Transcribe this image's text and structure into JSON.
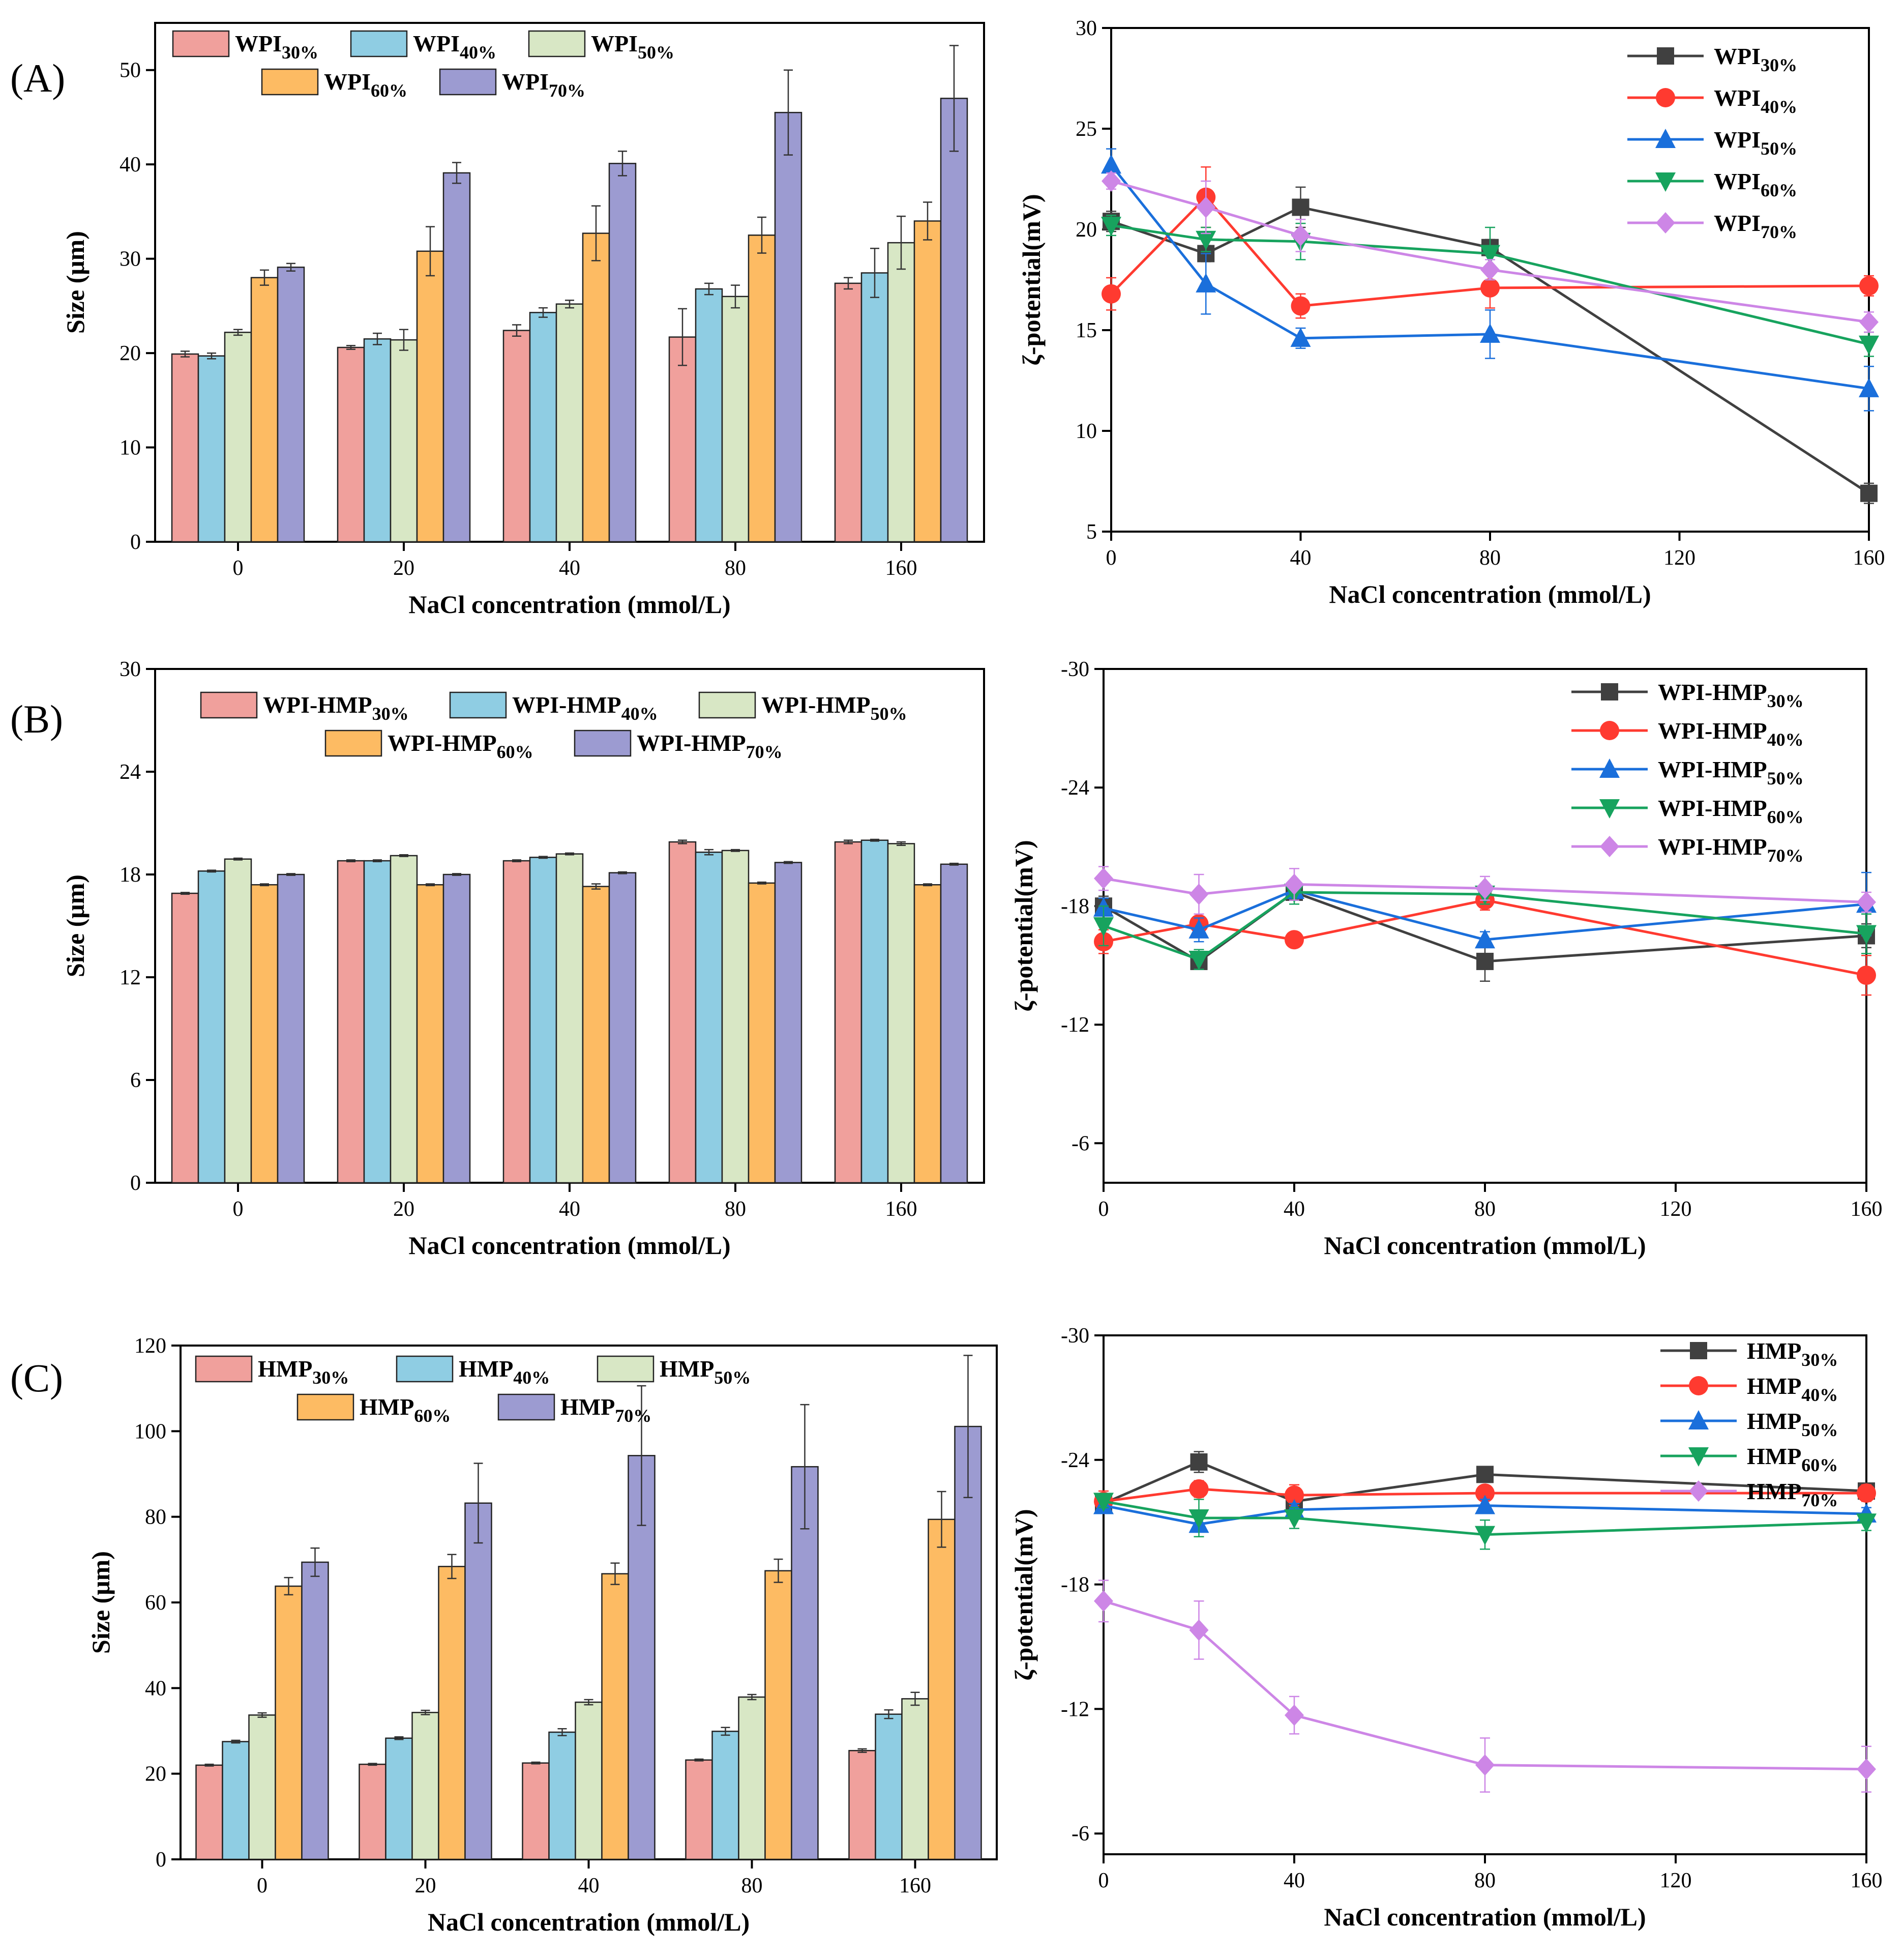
{
  "panel_labels": [
    "(A)",
    "(B)",
    "(C)"
  ],
  "chart_data": [
    {
      "id": "A-size",
      "panel": "(A)",
      "type": "bar",
      "title": "",
      "xlabel": "NaCl concentration (mmol/L)",
      "ylabel": "Size (μm)",
      "categories": [
        "0",
        "20",
        "40",
        "80",
        "160"
      ],
      "ylim": [
        0,
        55
      ],
      "yticks": [
        0,
        10,
        20,
        30,
        40,
        50
      ],
      "legend_rows": [
        [
          0,
          1,
          2
        ],
        [
          3,
          4
        ]
      ],
      "legend_position": "top-left",
      "series": [
        {
          "name": "WPI",
          "sub": "30%",
          "color": "#f0a09c",
          "values": [
            19.9,
            20.6,
            22.4,
            21.7,
            27.4
          ],
          "errors": [
            0.3,
            0.2,
            0.6,
            3.0,
            0.6
          ]
        },
        {
          "name": "WPI",
          "sub": "40%",
          "color": "#8fcde3",
          "values": [
            19.7,
            21.5,
            24.3,
            26.8,
            28.5
          ],
          "errors": [
            0.3,
            0.6,
            0.5,
            0.6,
            2.6
          ]
        },
        {
          "name": "WPI",
          "sub": "50%",
          "color": "#d8e7c5",
          "values": [
            22.2,
            21.4,
            25.2,
            26.0,
            31.7
          ],
          "errors": [
            0.3,
            1.1,
            0.4,
            1.2,
            2.8
          ]
        },
        {
          "name": "WPI",
          "sub": "60%",
          "color": "#fdbb63",
          "values": [
            28.0,
            30.8,
            32.7,
            32.5,
            34.0
          ],
          "errors": [
            0.8,
            2.6,
            2.9,
            1.9,
            2.0
          ]
        },
        {
          "name": "WPI",
          "sub": "70%",
          "color": "#9c9bd1",
          "values": [
            29.1,
            39.1,
            40.1,
            45.5,
            47.0
          ],
          "errors": [
            0.4,
            1.1,
            1.3,
            4.5,
            5.6
          ]
        }
      ]
    },
    {
      "id": "A-zeta",
      "panel": "(A)",
      "type": "line",
      "title": "",
      "xlabel": "NaCl concentration (mmol/L)",
      "ylabel": "ζ-potential(mV)",
      "x": [
        0,
        20,
        40,
        80,
        160
      ],
      "xlim": [
        0,
        160
      ],
      "xticks": [
        0,
        40,
        80,
        120,
        160
      ],
      "ylim": [
        5,
        30
      ],
      "yticks": [
        5,
        10,
        15,
        20,
        25,
        30
      ],
      "y_reversed": false,
      "legend_position": "top-right",
      "series": [
        {
          "name": "WPI",
          "sub": "30%",
          "color": "#404040",
          "marker": "square",
          "values": [
            20.4,
            18.8,
            21.1,
            19.1,
            6.9
          ],
          "errors": [
            0.5,
            0.4,
            1.0,
            0.4,
            0.5
          ]
        },
        {
          "name": "WPI",
          "sub": "40%",
          "color": "#ff3a30",
          "marker": "circle",
          "values": [
            16.8,
            21.6,
            16.2,
            17.1,
            17.2
          ],
          "errors": [
            0.8,
            1.5,
            0.6,
            1.0,
            0.5
          ]
        },
        {
          "name": "WPI",
          "sub": "50%",
          "color": "#1a6fdb",
          "marker": "triangle-up",
          "values": [
            23.2,
            17.3,
            14.6,
            14.8,
            12.1
          ],
          "errors": [
            0.8,
            1.5,
            0.5,
            1.2,
            1.1
          ]
        },
        {
          "name": "WPI",
          "sub": "60%",
          "color": "#17a35e",
          "marker": "triangle-down",
          "values": [
            20.2,
            19.5,
            19.4,
            18.8,
            14.3
          ],
          "errors": [
            0.5,
            0.6,
            0.9,
            1.3,
            0.6
          ]
        },
        {
          "name": "WPI",
          "sub": "70%",
          "color": "#cd86e6",
          "marker": "diamond",
          "values": [
            22.4,
            21.1,
            19.7,
            18.0,
            15.4
          ],
          "errors": [
            0.4,
            1.3,
            0.8,
            0.5,
            0.5
          ]
        }
      ]
    },
    {
      "id": "B-size",
      "panel": "(B)",
      "type": "bar",
      "title": "",
      "xlabel": "NaCl concentration (mmol/L)",
      "ylabel": "Size (μm)",
      "categories": [
        "0",
        "20",
        "40",
        "80",
        "160"
      ],
      "ylim": [
        0,
        30
      ],
      "yticks": [
        0,
        6,
        12,
        18,
        24,
        30
      ],
      "legend_rows": [
        [
          0,
          1,
          2
        ],
        [
          3,
          4
        ]
      ],
      "legend_position": "top-left",
      "series": [
        {
          "name": "WPI-HMP",
          "sub": "30%",
          "color": "#f0a09c",
          "values": [
            16.9,
            18.8,
            18.8,
            19.9,
            19.9
          ],
          "errors": [
            0.05,
            0.05,
            0.05,
            0.1,
            0.1
          ]
        },
        {
          "name": "WPI-HMP",
          "sub": "40%",
          "color": "#8fcde3",
          "values": [
            18.2,
            18.8,
            19.0,
            19.3,
            20.0
          ],
          "errors": [
            0.05,
            0.05,
            0.05,
            0.15,
            0.05
          ]
        },
        {
          "name": "WPI-HMP",
          "sub": "50%",
          "color": "#d8e7c5",
          "values": [
            18.9,
            19.1,
            19.2,
            19.4,
            19.8
          ],
          "errors": [
            0.05,
            0.05,
            0.05,
            0.05,
            0.1
          ]
        },
        {
          "name": "WPI-HMP",
          "sub": "60%",
          "color": "#fdbb63",
          "values": [
            17.4,
            17.4,
            17.3,
            17.5,
            17.4
          ],
          "errors": [
            0.05,
            0.05,
            0.15,
            0.05,
            0.05
          ]
        },
        {
          "name": "WPI-HMP",
          "sub": "70%",
          "color": "#9c9bd1",
          "values": [
            18.0,
            18.0,
            18.1,
            18.7,
            18.6
          ],
          "errors": [
            0.05,
            0.05,
            0.05,
            0.05,
            0.05
          ]
        }
      ]
    },
    {
      "id": "B-zeta",
      "panel": "(B)",
      "type": "line",
      "title": "",
      "xlabel": "NaCl concentration (mmol/L)",
      "ylabel": "ζ-potential(mV)",
      "x": [
        0,
        20,
        40,
        80,
        160
      ],
      "xlim": [
        0,
        160
      ],
      "xticks": [
        0,
        40,
        80,
        120,
        160
      ],
      "ylim": [
        -30,
        -4
      ],
      "yticks": [
        -30,
        -24,
        -18,
        -12,
        -6
      ],
      "y_reversed": true,
      "legend_position": "top-right",
      "series": [
        {
          "name": "WPI-HMP",
          "sub": "30%",
          "color": "#404040",
          "marker": "square",
          "values": [
            -18.0,
            -15.2,
            -18.7,
            -15.2,
            -16.5
          ],
          "errors": [
            0.5,
            0.4,
            0.4,
            1.0,
            0.6
          ]
        },
        {
          "name": "WPI-HMP",
          "sub": "40%",
          "color": "#ff3a30",
          "marker": "circle",
          "values": [
            -16.2,
            -17.1,
            -16.3,
            -18.3,
            -14.5
          ],
          "errors": [
            0.6,
            0.5,
            0.3,
            0.5,
            1.0
          ]
        },
        {
          "name": "WPI-HMP",
          "sub": "50%",
          "color": "#1a6fdb",
          "marker": "triangle-up",
          "values": [
            -17.9,
            -16.8,
            -18.8,
            -16.3,
            -18.1
          ],
          "errors": [
            0.5,
            0.6,
            0.4,
            0.4,
            1.6
          ]
        },
        {
          "name": "WPI-HMP",
          "sub": "60%",
          "color": "#17a35e",
          "marker": "triangle-down",
          "values": [
            -17.0,
            -15.3,
            -18.7,
            -18.6,
            -16.6
          ],
          "errors": [
            1.0,
            0.5,
            0.6,
            0.5,
            1.0
          ]
        },
        {
          "name": "WPI-HMP",
          "sub": "70%",
          "color": "#cd86e6",
          "marker": "diamond",
          "values": [
            -19.4,
            -18.6,
            -19.1,
            -18.9,
            -18.2
          ],
          "errors": [
            0.6,
            1.0,
            0.8,
            0.6,
            0.5
          ]
        }
      ]
    },
    {
      "id": "C-size",
      "panel": "(C)",
      "type": "bar",
      "title": "",
      "xlabel": "NaCl concentration (mmol/L)",
      "ylabel": "Size (μm)",
      "categories": [
        "0",
        "20",
        "40",
        "80",
        "160"
      ],
      "ylim": [
        0,
        120
      ],
      "yticks": [
        0,
        20,
        40,
        60,
        80,
        100,
        120
      ],
      "legend_rows": [
        [
          0,
          1,
          2
        ],
        [
          3,
          4
        ]
      ],
      "legend_position": "top-left",
      "series": [
        {
          "name": "HMP",
          "sub": "30%",
          "color": "#f0a09c",
          "values": [
            22.0,
            22.2,
            22.5,
            23.2,
            25.4
          ],
          "errors": [
            0.2,
            0.2,
            0.2,
            0.2,
            0.4
          ]
        },
        {
          "name": "HMP",
          "sub": "40%",
          "color": "#8fcde3",
          "values": [
            27.5,
            28.3,
            29.7,
            29.9,
            33.9
          ],
          "errors": [
            0.3,
            0.3,
            0.8,
            0.9,
            1.0
          ]
        },
        {
          "name": "HMP",
          "sub": "50%",
          "color": "#d8e7c5",
          "values": [
            33.7,
            34.3,
            36.7,
            37.9,
            37.5
          ],
          "errors": [
            0.5,
            0.5,
            0.6,
            0.6,
            1.5
          ]
        },
        {
          "name": "HMP",
          "sub": "60%",
          "color": "#fdbb63",
          "values": [
            63.8,
            68.4,
            66.7,
            67.4,
            79.4
          ],
          "errors": [
            2.0,
            2.8,
            2.5,
            2.7,
            6.5
          ]
        },
        {
          "name": "HMP",
          "sub": "70%",
          "color": "#9c9bd1",
          "values": [
            69.4,
            83.2,
            94.3,
            91.7,
            101.1
          ],
          "errors": [
            3.3,
            9.3,
            16.3,
            14.5,
            16.6
          ]
        }
      ]
    },
    {
      "id": "C-zeta",
      "panel": "(C)",
      "type": "line",
      "title": "",
      "xlabel": "NaCl concentration (mmol/L)",
      "ylabel": "ζ-potential(mV)",
      "x": [
        0,
        20,
        40,
        80,
        160
      ],
      "xlim": [
        0,
        160
      ],
      "xticks": [
        0,
        40,
        80,
        120,
        160
      ],
      "ylim": [
        -30,
        -5
      ],
      "yticks": [
        -30,
        -24,
        -18,
        -12,
        -6
      ],
      "y_reversed": true,
      "legend_position": "top-right",
      "series": [
        {
          "name": "HMP",
          "sub": "30%",
          "color": "#404040",
          "marker": "square",
          "values": [
            -21.9,
            -23.9,
            -22.0,
            -23.3,
            -22.5
          ],
          "errors": [
            0.3,
            0.5,
            0.3,
            0.2,
            0.3
          ]
        },
        {
          "name": "HMP",
          "sub": "40%",
          "color": "#ff3a30",
          "marker": "circle",
          "values": [
            -22.0,
            -22.6,
            -22.3,
            -22.4,
            -22.4
          ],
          "errors": [
            0.5,
            0.4,
            0.5,
            0.3,
            0.4
          ]
        },
        {
          "name": "HMP",
          "sub": "50%",
          "color": "#1a6fdb",
          "marker": "triangle-up",
          "values": [
            -21.8,
            -20.9,
            -21.6,
            -21.8,
            -21.4
          ],
          "errors": [
            0.3,
            0.3,
            0.3,
            0.3,
            0.3
          ]
        },
        {
          "name": "HMP",
          "sub": "60%",
          "color": "#17a35e",
          "marker": "triangle-down",
          "values": [
            -22.0,
            -21.2,
            -21.2,
            -20.4,
            -21.0
          ],
          "errors": [
            0.3,
            0.9,
            0.5,
            0.7,
            0.4
          ]
        },
        {
          "name": "HMP",
          "sub": "70%",
          "color": "#cd86e6",
          "marker": "diamond",
          "values": [
            -17.2,
            -15.8,
            -11.7,
            -9.3,
            -9.1
          ],
          "errors": [
            1.0,
            1.4,
            0.9,
            1.3,
            1.1
          ]
        }
      ]
    }
  ]
}
